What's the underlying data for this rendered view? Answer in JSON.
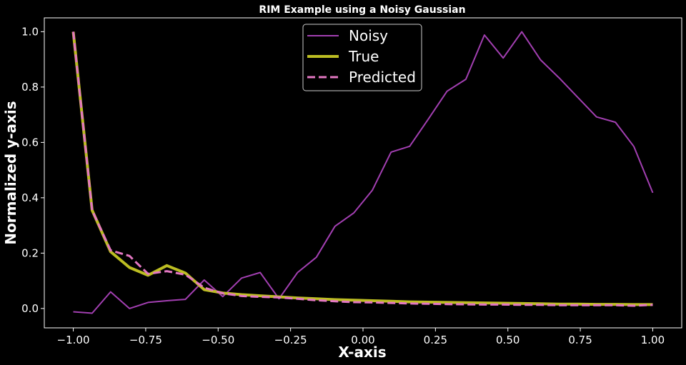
{
  "chart_data": {
    "type": "line",
    "title": "RIM Example using a Noisy Gaussian",
    "xlabel": "X-axis",
    "ylabel": "Normalized y-axis",
    "xlim": [
      -1.1,
      1.1
    ],
    "ylim": [
      -0.07,
      1.05
    ],
    "xticks": [
      -1.0,
      -0.75,
      -0.5,
      -0.25,
      0.0,
      0.25,
      0.5,
      0.75,
      1.0
    ],
    "xtick_labels": [
      "−1.00",
      "−0.75",
      "−0.50",
      "−0.25",
      "0.00",
      "0.25",
      "0.50",
      "0.75",
      "1.00"
    ],
    "yticks": [
      0.0,
      0.2,
      0.4,
      0.6,
      0.8,
      1.0
    ],
    "ytick_labels": [
      "0.0",
      "0.2",
      "0.4",
      "0.6",
      "0.8",
      "1.0"
    ],
    "grid": false,
    "legend_position": "top-center",
    "background": "#000000",
    "x": [
      -1.0,
      -0.935,
      -0.871,
      -0.806,
      -0.742,
      -0.677,
      -0.613,
      -0.548,
      -0.484,
      -0.419,
      -0.355,
      -0.29,
      -0.226,
      -0.161,
      -0.097,
      -0.032,
      0.032,
      0.097,
      0.161,
      0.226,
      0.29,
      0.355,
      0.419,
      0.484,
      0.548,
      0.613,
      0.677,
      0.742,
      0.806,
      0.871,
      0.935,
      1.0
    ],
    "series": [
      {
        "name": "Noisy",
        "color": "#a23fb1",
        "dash": "solid",
        "width": 2,
        "values": [
          -0.012,
          -0.017,
          0.06,
          0.0,
          0.022,
          0.028,
          0.033,
          0.103,
          0.043,
          0.11,
          0.13,
          0.035,
          0.13,
          0.185,
          0.297,
          0.345,
          0.427,
          0.565,
          0.586,
          0.685,
          0.785,
          0.828,
          0.988,
          0.905,
          1.0,
          0.898,
          0.833,
          0.762,
          0.692,
          0.673,
          0.585,
          0.418
        ]
      },
      {
        "name": "True",
        "color": "#bcbd22",
        "dash": "solid",
        "width": 4,
        "values": [
          1.0,
          0.355,
          0.205,
          0.148,
          0.12,
          0.155,
          0.128,
          0.068,
          0.056,
          0.05,
          0.046,
          0.042,
          0.038,
          0.035,
          0.032,
          0.03,
          0.028,
          0.026,
          0.024,
          0.023,
          0.022,
          0.021,
          0.02,
          0.019,
          0.018,
          0.017,
          0.016,
          0.016,
          0.015,
          0.015,
          0.014,
          0.014
        ]
      },
      {
        "name": "Predicted",
        "color": "#e377c2",
        "dash": "dashed",
        "width": 3,
        "values": [
          1.0,
          0.355,
          0.21,
          0.19,
          0.125,
          0.135,
          0.122,
          0.075,
          0.055,
          0.045,
          0.042,
          0.04,
          0.035,
          0.03,
          0.026,
          0.023,
          0.022,
          0.02,
          0.018,
          0.017,
          0.016,
          0.015,
          0.014,
          0.014,
          0.013,
          0.013,
          0.012,
          0.012,
          0.012,
          0.012,
          0.01,
          0.013
        ]
      }
    ]
  }
}
